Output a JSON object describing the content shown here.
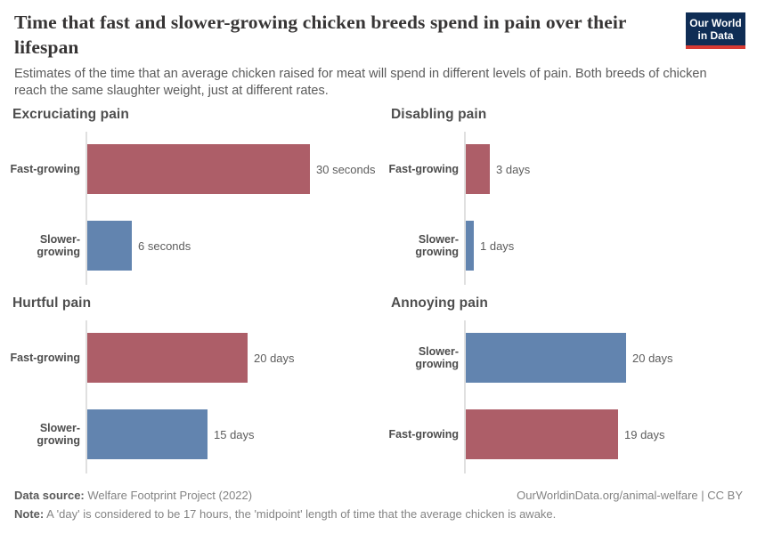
{
  "header": {
    "title": "Time that fast and slower-growing chicken breeds spend in pain over their lifespan",
    "subtitle": "Estimates of the time that an average chicken raised for meat will spend in different levels of pain. Both breeds of chicken reach the same slaughter weight, just at different rates.",
    "logo": {
      "line1": "Our World",
      "line2": "in Data"
    }
  },
  "colors": {
    "fast_growing_bar": "#ad5e68",
    "slower_growing_bar": "#6284af",
    "axis": "#e0e0e0",
    "logo_navy": "#0f2d55",
    "logo_red": "#d73a33"
  },
  "chart_data": [
    {
      "type": "bar",
      "orientation": "horizontal",
      "title": "Excruciating pain",
      "unit": "seconds",
      "categories": [
        "Fast-growing",
        "Slower-growing"
      ],
      "values": [
        30,
        6
      ],
      "value_labels": [
        "30 seconds",
        "6 seconds"
      ],
      "xlim": [
        0,
        30
      ],
      "grid": false,
      "legend": "none"
    },
    {
      "type": "bar",
      "orientation": "horizontal",
      "title": "Disabling pain",
      "unit": "days",
      "categories": [
        "Fast-growing",
        "Slower-growing"
      ],
      "values": [
        3,
        1
      ],
      "value_labels": [
        "3 days",
        "1 days"
      ],
      "xlim": [
        0,
        20
      ],
      "grid": false,
      "legend": "none"
    },
    {
      "type": "bar",
      "orientation": "horizontal",
      "title": "Hurtful pain",
      "unit": "days",
      "categories": [
        "Fast-growing",
        "Slower-growing"
      ],
      "values": [
        20,
        15
      ],
      "value_labels": [
        "20 days",
        "15 days"
      ],
      "xlim": [
        0,
        20
      ],
      "grid": false,
      "legend": "none"
    },
    {
      "type": "bar",
      "orientation": "horizontal",
      "title": "Annoying pain",
      "unit": "days",
      "categories": [
        "Slower-growing",
        "Fast-growing"
      ],
      "values": [
        20,
        19
      ],
      "value_labels": [
        "20 days",
        "19 days"
      ],
      "xlim": [
        0,
        20
      ],
      "grid": false,
      "legend": "none"
    }
  ],
  "footer": {
    "datasource_label": "Data source:",
    "datasource_value": " Welfare Footprint Project (2022)",
    "link": "OurWorldinData.org/animal-welfare | CC BY",
    "note_label": "Note:",
    "note_value": " A 'day' is considered to be 17 hours, the 'midpoint' length of time that the average chicken is awake."
  }
}
